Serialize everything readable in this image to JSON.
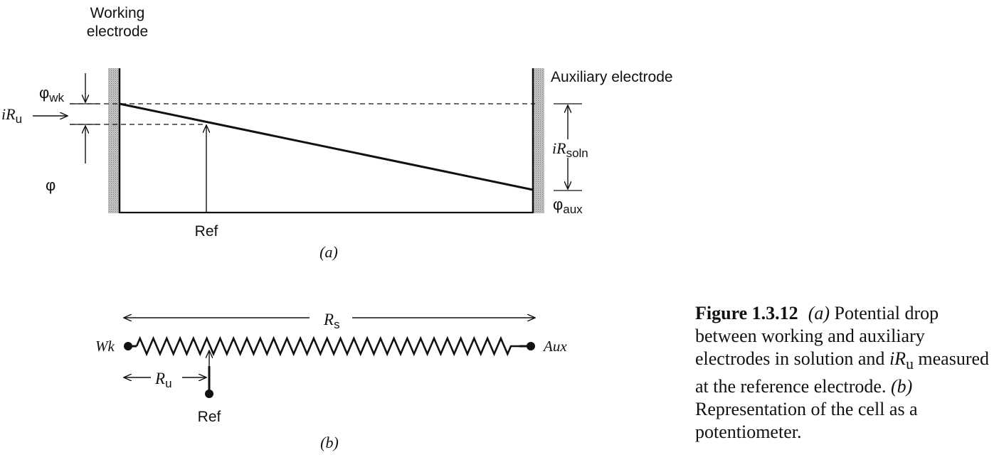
{
  "panel_a": {
    "working_electrode": {
      "line1": "Working",
      "line2": "electrode"
    },
    "auxiliary_electrode": "Auxiliary electrode",
    "phi_wk": {
      "symbol": "φ",
      "sub": "wk"
    },
    "iRu": {
      "i": "i",
      "R": "R",
      "sub": "u"
    },
    "phi": "φ",
    "iRsoln": {
      "i": "i",
      "R": "R",
      "sub": "soln"
    },
    "phi_aux": {
      "symbol": "φ",
      "sub": "aux"
    },
    "ref": "Ref",
    "panel_label": "(a)"
  },
  "panel_b": {
    "Rs": {
      "R": "R",
      "sub": "s"
    },
    "Ru": {
      "R": "R",
      "sub": "u"
    },
    "wk": "Wk",
    "aux": "Aux",
    "ref": "Ref",
    "panel_label": "(b)"
  },
  "caption": {
    "number": "Figure 1.3.12",
    "part_a": "(a)",
    "text_a": " Potential drop between working and auxiliary electrodes in solution and ",
    "iRu_i": "i",
    "iRu_R": "R",
    "iRu_sub": "u",
    "text_a2": " measured at the reference electrode. ",
    "part_b": "(b)",
    "text_b": " Representation of the cell as a potentiometer."
  }
}
